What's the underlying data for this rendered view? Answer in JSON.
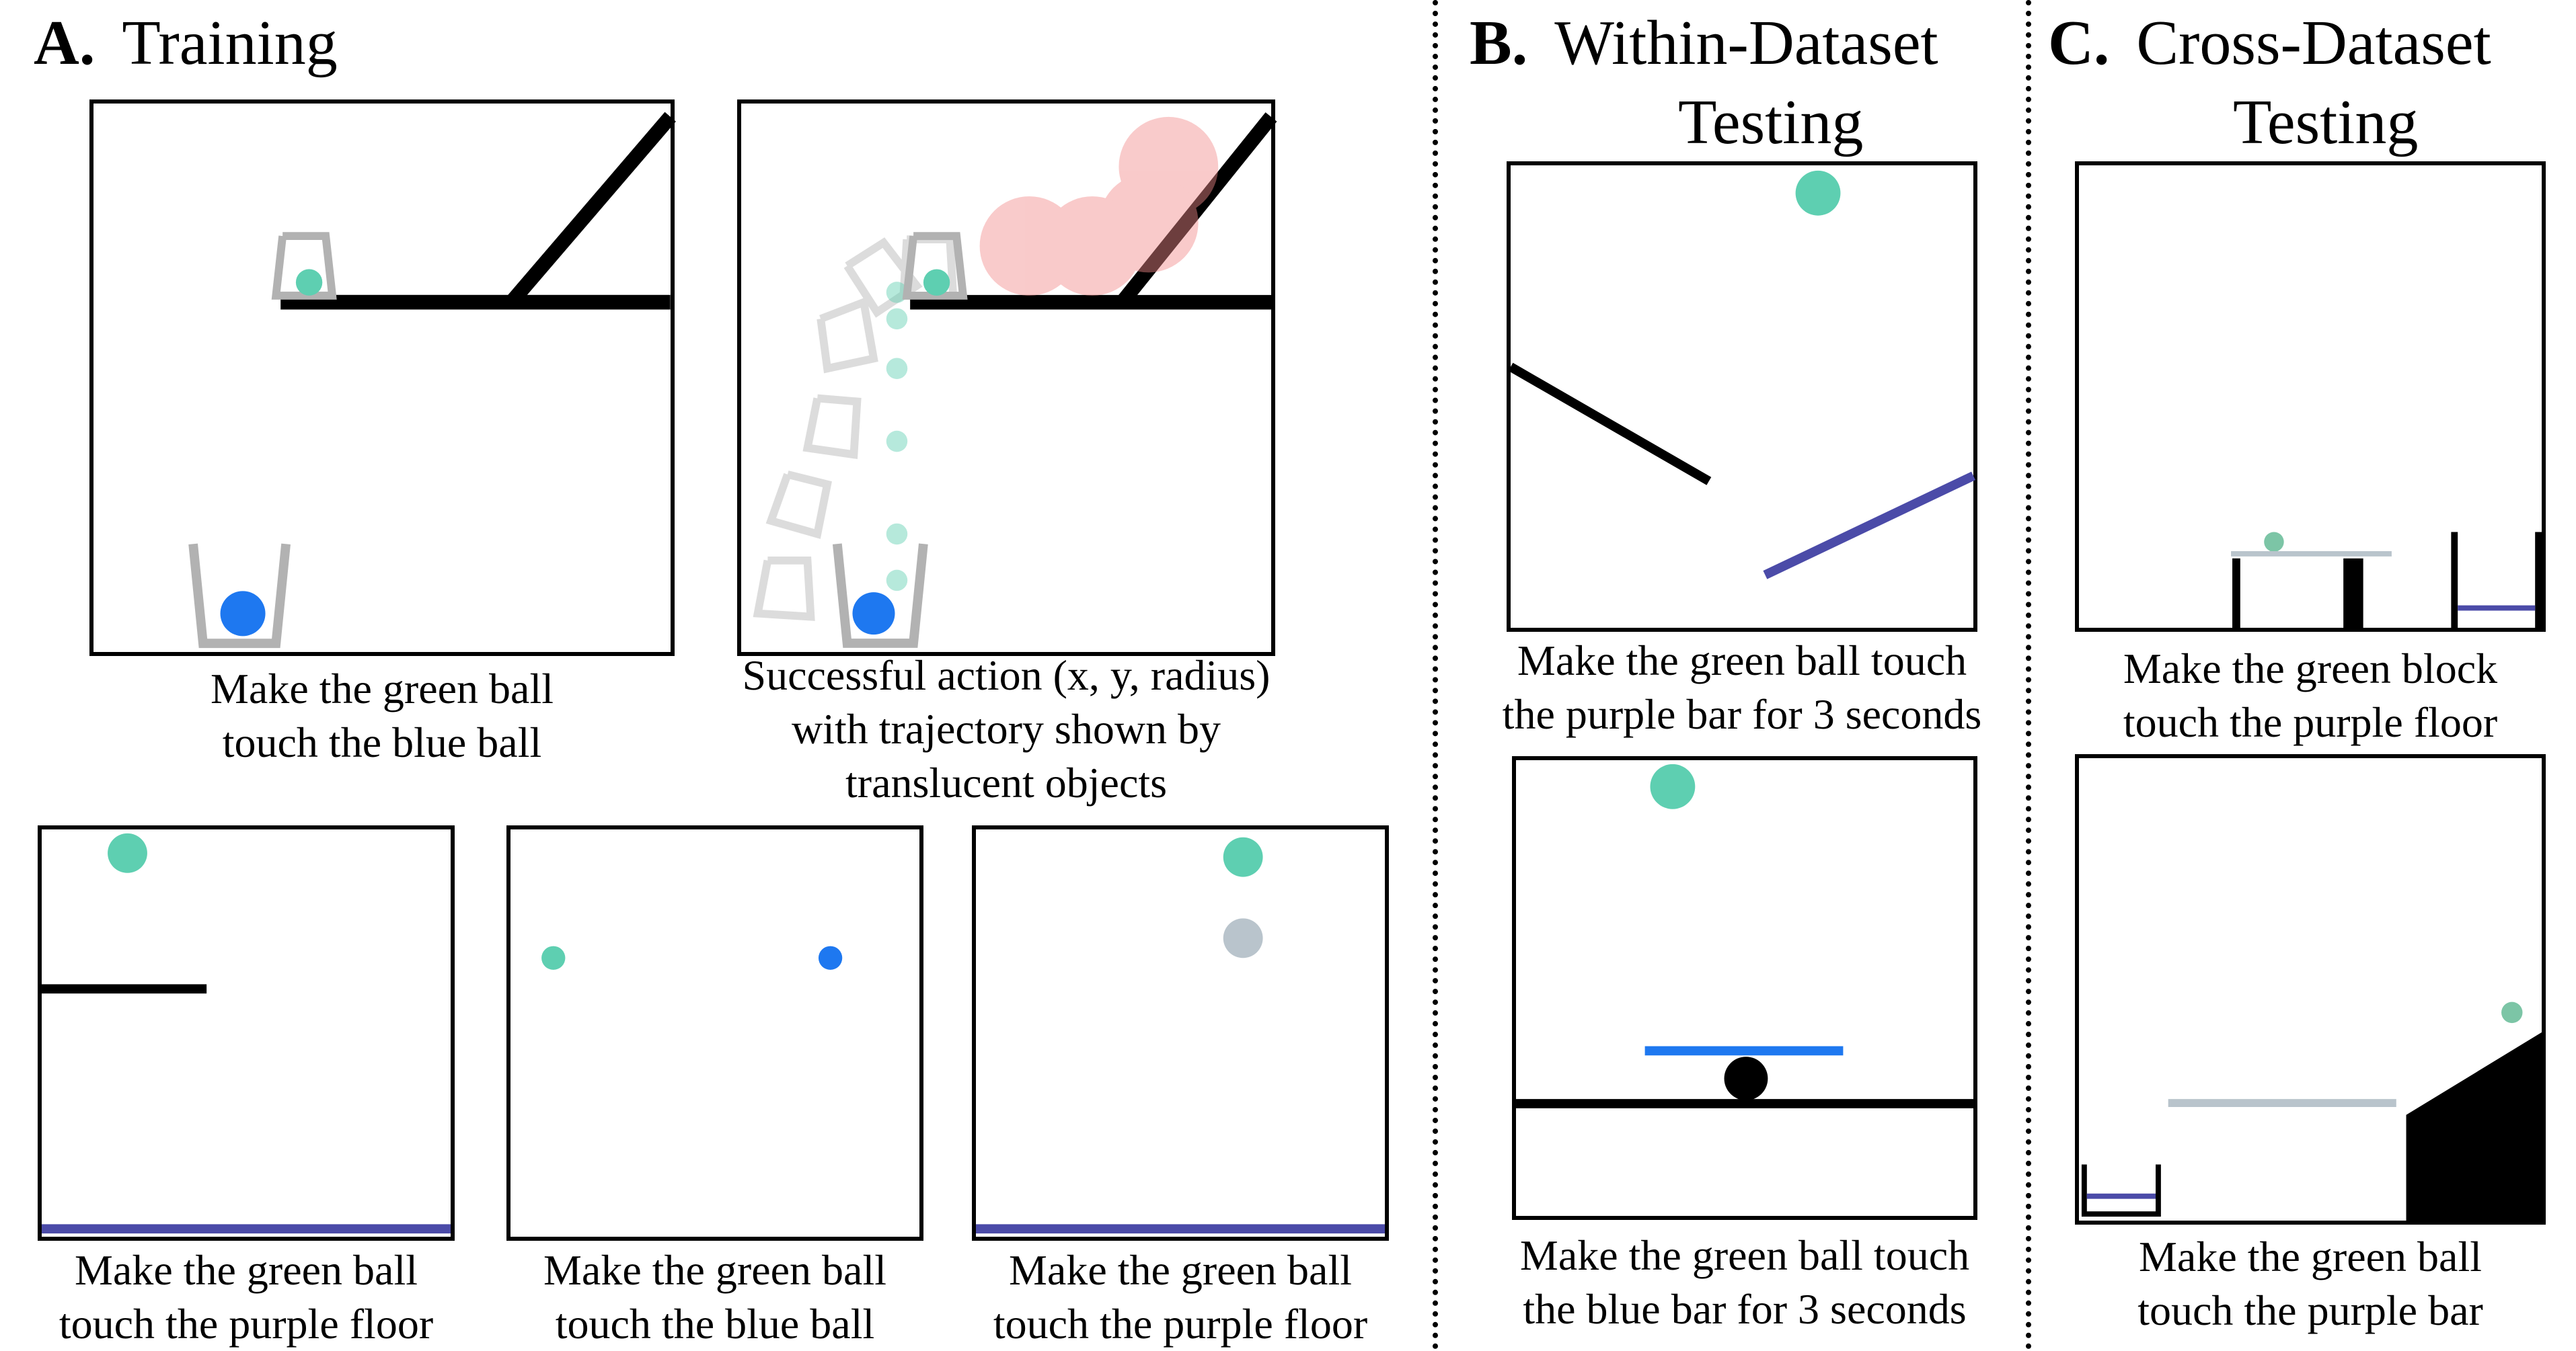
{
  "sections": {
    "a": {
      "letter": "A.",
      "title": "Training"
    },
    "b": {
      "letter": "B.",
      "title_line1": "Within-Dataset",
      "title_line2": "Testing"
    },
    "c": {
      "letter": "C.",
      "title_line1": "Cross-Dataset",
      "title_line2": "Testing"
    }
  },
  "panels": {
    "a1": {
      "line1": "Make the green ball",
      "line2": "touch the blue ball"
    },
    "a2": {
      "line1": "Successful action (x, y, radius)",
      "line2": "with trajectory shown by",
      "line3": "translucent objects"
    },
    "a3": {
      "line1": "Make the green ball",
      "line2": "touch the purple floor"
    },
    "a4": {
      "line1": "Make the green ball",
      "line2": "touch the blue ball"
    },
    "a5": {
      "line1": "Make the green ball",
      "line2": "touch  the purple floor"
    },
    "b1": {
      "line1": "Make the green ball touch",
      "line2": "the purple bar for 3 seconds"
    },
    "b2": {
      "line1": "Make the green ball touch",
      "line2": "the blue bar for 3 seconds"
    },
    "c1": {
      "line1": "Make the green block",
      "line2": "touch the purple floor"
    },
    "c2": {
      "line1": "Make the green ball",
      "line2": "touch the purple bar"
    }
  },
  "colors": {
    "green": "#5ecfb1",
    "blue": "#1e78f0",
    "purple": "#4b4ba8",
    "gray": "#b2b2b2",
    "light_gray": "#b9c4cc",
    "red_action": "#f28b8b",
    "black": "#000000"
  }
}
